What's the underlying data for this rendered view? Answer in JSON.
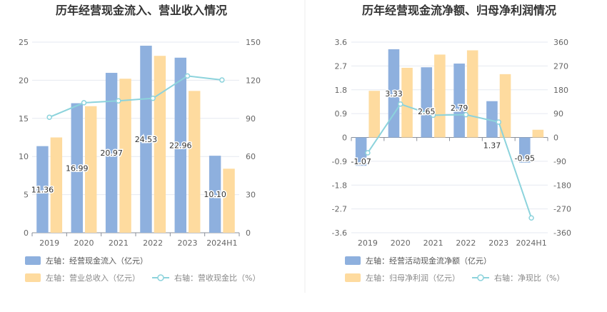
{
  "colors": {
    "bar_primary": "#8eb0de",
    "bar_secondary": "#fedb9f",
    "line": "#8cd3dc",
    "grid": "#e6e9f0",
    "divider": "#eeeeee"
  },
  "chart_data": [
    {
      "type": "bar",
      "title": "历年经营现金流入、营业收入情况",
      "categories": [
        "2019",
        "2020",
        "2021",
        "2022",
        "2023",
        "2024H1"
      ],
      "left_axis": {
        "ticks": [
          0,
          5,
          10,
          15,
          20,
          25
        ],
        "ylim": [
          0,
          25
        ]
      },
      "right_axis": {
        "ticks": [
          0,
          30,
          60,
          90,
          120,
          150
        ],
        "ylim": [
          0,
          150
        ]
      },
      "series": [
        {
          "name": "左轴：经营现金流入（亿元）",
          "type": "bar",
          "axis": "left",
          "values": [
            11.36,
            16.99,
            20.97,
            24.53,
            22.96,
            10.1
          ],
          "labels": [
            "11.36",
            "16.99",
            "20.97",
            "24.53",
            "22.96",
            "10.10"
          ]
        },
        {
          "name": "左轴：营业总收入（亿元）",
          "type": "bar",
          "axis": "left",
          "values": [
            12.5,
            16.6,
            20.2,
            23.2,
            18.6,
            8.4
          ]
        },
        {
          "name": "右轴：营收现金比（%）",
          "type": "line",
          "axis": "right",
          "values": [
            90.9,
            102.3,
            103.8,
            105.8,
            123.4,
            120.2
          ]
        }
      ]
    },
    {
      "type": "bar",
      "title": "历年经营现金流净额、归母净利润情况",
      "categories": [
        "2019",
        "2020",
        "2021",
        "2022",
        "2023",
        "2024H1"
      ],
      "left_axis": {
        "ticks": [
          -3.6,
          -2.7,
          -1.8,
          -0.9,
          0,
          0.9,
          1.8,
          2.7,
          3.6
        ],
        "ylim": [
          -3.6,
          3.6
        ]
      },
      "right_axis": {
        "ticks": [
          -360,
          -270,
          -180,
          -90,
          0,
          90,
          180,
          270,
          360
        ],
        "ylim": [
          -360,
          360
        ]
      },
      "series": [
        {
          "name": "左轴：经营活动现金流净额（亿元）",
          "type": "bar",
          "axis": "left",
          "values": [
            -1.07,
            3.33,
            2.65,
            2.79,
            1.37,
            -0.95
          ],
          "labels": [
            "-1.07",
            "3.33",
            "2.65",
            "2.79",
            "1.37",
            "-0.95"
          ]
        },
        {
          "name": "左轴：归母净利润（亿元）",
          "type": "bar",
          "axis": "left",
          "values": [
            1.76,
            2.63,
            3.13,
            3.29,
            2.39,
            0.29
          ]
        },
        {
          "name": "右轴：净现比（%）",
          "type": "line",
          "axis": "right",
          "values": [
            -58,
            126,
            84,
            86,
            58,
            -304
          ]
        }
      ]
    }
  ]
}
